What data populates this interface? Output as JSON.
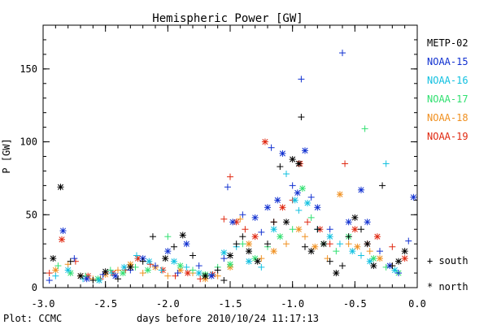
{
  "chart_data": {
    "type": "scatter",
    "title": "Hemispheric Power [GW]",
    "xlabel": "days before 2010/10/24 11:17:13",
    "ylabel": "P [GW]",
    "xlim": [
      -3.0,
      0.0
    ],
    "ylim": [
      0,
      180
    ],
    "x_ticks": [
      -3.0,
      -2.5,
      -2.0,
      -1.5,
      -1.0,
      -0.5,
      0.0
    ],
    "x_tick_labels": [
      "-3.0",
      "-2.5",
      "-2.0",
      "-1.5",
      "-1.0",
      "-0.5",
      "0.0"
    ],
    "y_ticks": [
      0,
      50,
      100,
      150
    ],
    "y_tick_labels": [
      "0",
      "50",
      "100",
      "150"
    ],
    "grid": false,
    "legend_position": "right",
    "legend": [
      {
        "name": "METP-02",
        "color": "#000000"
      },
      {
        "name": "NOAA-15",
        "color": "#1030d0"
      },
      {
        "name": "NOAA-16",
        "color": "#10c0e0"
      },
      {
        "name": "NOAA-17",
        "color": "#30e070"
      },
      {
        "name": "NOAA-18",
        "color": "#f09020"
      },
      {
        "name": "NOAA-19",
        "color": "#e02810"
      }
    ],
    "marker_key": [
      {
        "symbol": "+",
        "label": "south"
      },
      {
        "symbol": "*",
        "label": "north"
      }
    ],
    "series": [
      {
        "name": "METP-02",
        "color": "#000000",
        "points": [
          [
            -2.92,
            20,
            "*"
          ],
          [
            -2.86,
            69,
            "*"
          ],
          [
            -2.78,
            18,
            "+"
          ],
          [
            -2.7,
            8,
            "*"
          ],
          [
            -2.6,
            5,
            "+"
          ],
          [
            -2.5,
            11,
            "*"
          ],
          [
            -2.4,
            6,
            "+"
          ],
          [
            -2.3,
            14,
            "*"
          ],
          [
            -2.2,
            18,
            "+"
          ],
          [
            -2.12,
            35,
            "+"
          ],
          [
            -2.02,
            20,
            "*"
          ],
          [
            -1.95,
            28,
            "+"
          ],
          [
            -1.88,
            36,
            "*"
          ],
          [
            -1.8,
            22,
            "+"
          ],
          [
            -1.7,
            8,
            "*"
          ],
          [
            -1.6,
            12,
            "+"
          ],
          [
            -1.55,
            5,
            "+"
          ],
          [
            -1.5,
            22,
            "*"
          ],
          [
            -1.45,
            30,
            "+"
          ],
          [
            -1.4,
            35,
            "+"
          ],
          [
            -1.35,
            25,
            "*"
          ],
          [
            -1.28,
            18,
            "*"
          ],
          [
            -1.2,
            30,
            "+"
          ],
          [
            -1.15,
            45,
            "+"
          ],
          [
            -1.1,
            83,
            "+"
          ],
          [
            -1.05,
            45,
            "*"
          ],
          [
            -1.0,
            88,
            "*"
          ],
          [
            -0.95,
            85,
            "*"
          ],
          [
            -0.93,
            117,
            "+"
          ],
          [
            -0.9,
            28,
            "+"
          ],
          [
            -0.85,
            25,
            "*"
          ],
          [
            -0.8,
            40,
            "+"
          ],
          [
            -0.75,
            30,
            "*"
          ],
          [
            -0.7,
            18,
            "+"
          ],
          [
            -0.65,
            10,
            "*"
          ],
          [
            -0.6,
            15,
            "+"
          ],
          [
            -0.55,
            35,
            "+"
          ],
          [
            -0.5,
            48,
            "*"
          ],
          [
            -0.45,
            40,
            "+"
          ],
          [
            -0.4,
            30,
            "*"
          ],
          [
            -0.35,
            15,
            "*"
          ],
          [
            -0.28,
            70,
            "+"
          ],
          [
            -0.2,
            15,
            "+"
          ],
          [
            -0.15,
            18,
            "*"
          ],
          [
            -0.1,
            25,
            "*"
          ]
        ]
      },
      {
        "name": "NOAA-15",
        "color": "#1030d0",
        "points": [
          [
            -2.95,
            5,
            "+"
          ],
          [
            -2.84,
            39,
            "*"
          ],
          [
            -2.75,
            20,
            "+"
          ],
          [
            -2.65,
            6,
            "*"
          ],
          [
            -2.52,
            9,
            "+"
          ],
          [
            -2.42,
            8,
            "*"
          ],
          [
            -2.3,
            12,
            "+"
          ],
          [
            -2.2,
            20,
            "*"
          ],
          [
            -2.1,
            15,
            "+"
          ],
          [
            -2.0,
            25,
            "*"
          ],
          [
            -1.92,
            10,
            "+"
          ],
          [
            -1.85,
            30,
            "*"
          ],
          [
            -1.75,
            15,
            "+"
          ],
          [
            -1.65,
            8,
            "*"
          ],
          [
            -1.55,
            20,
            "+"
          ],
          [
            -1.52,
            69,
            "+"
          ],
          [
            -1.48,
            45,
            "*"
          ],
          [
            -1.4,
            50,
            "+"
          ],
          [
            -1.3,
            48,
            "*"
          ],
          [
            -1.25,
            38,
            "+"
          ],
          [
            -1.2,
            55,
            "*"
          ],
          [
            -1.17,
            96,
            "+"
          ],
          [
            -1.12,
            60,
            "*"
          ],
          [
            -1.08,
            92,
            "*"
          ],
          [
            -1.0,
            70,
            "+"
          ],
          [
            -0.96,
            65,
            "*"
          ],
          [
            -0.93,
            143,
            "+"
          ],
          [
            -0.9,
            94,
            "*"
          ],
          [
            -0.85,
            62,
            "+"
          ],
          [
            -0.8,
            55,
            "*"
          ],
          [
            -0.7,
            40,
            "+"
          ],
          [
            -0.6,
            161,
            "+"
          ],
          [
            -0.55,
            45,
            "*"
          ],
          [
            -0.45,
            67,
            "*"
          ],
          [
            -0.4,
            45,
            "*"
          ],
          [
            -0.3,
            25,
            "+"
          ],
          [
            -0.22,
            15,
            "*"
          ],
          [
            -0.15,
            10,
            "+"
          ],
          [
            -0.07,
            32,
            "+"
          ],
          [
            -0.03,
            62,
            "*"
          ]
        ]
      },
      {
        "name": "NOAA-16",
        "color": "#10c0e0",
        "points": [
          [
            -2.9,
            8,
            "+"
          ],
          [
            -2.8,
            12,
            "*"
          ],
          [
            -2.68,
            6,
            "+"
          ],
          [
            -2.55,
            5,
            "*"
          ],
          [
            -2.45,
            10,
            "+"
          ],
          [
            -2.35,
            14,
            "*"
          ],
          [
            -2.25,
            22,
            "+"
          ],
          [
            -2.15,
            18,
            "*"
          ],
          [
            -2.05,
            12,
            "+"
          ],
          [
            -1.95,
            18,
            "*"
          ],
          [
            -1.85,
            14,
            "+"
          ],
          [
            -1.75,
            10,
            "*"
          ],
          [
            -1.65,
            9,
            "+"
          ],
          [
            -1.55,
            24,
            "*"
          ],
          [
            -1.45,
            28,
            "+"
          ],
          [
            -1.35,
            18,
            "*"
          ],
          [
            -1.25,
            14,
            "+"
          ],
          [
            -1.15,
            40,
            "*"
          ],
          [
            -1.05,
            78,
            "+"
          ],
          [
            -0.98,
            60,
            "*"
          ],
          [
            -0.95,
            53,
            "+"
          ],
          [
            -0.88,
            58,
            "*"
          ],
          [
            -0.8,
            40,
            "+"
          ],
          [
            -0.7,
            35,
            "*"
          ],
          [
            -0.62,
            30,
            "+"
          ],
          [
            -0.52,
            25,
            "*"
          ],
          [
            -0.45,
            22,
            "+"
          ],
          [
            -0.38,
            18,
            "*"
          ],
          [
            -0.25,
            85,
            "+"
          ],
          [
            -0.18,
            12,
            "*"
          ]
        ]
      },
      {
        "name": "NOAA-17",
        "color": "#30e070",
        "points": [
          [
            -2.88,
            15,
            "+"
          ],
          [
            -2.78,
            10,
            "*"
          ],
          [
            -2.66,
            8,
            "+"
          ],
          [
            -2.56,
            6,
            "*"
          ],
          [
            -2.46,
            12,
            "+"
          ],
          [
            -2.36,
            10,
            "*"
          ],
          [
            -2.26,
            14,
            "+"
          ],
          [
            -2.16,
            12,
            "*"
          ],
          [
            -2.0,
            35,
            "+"
          ],
          [
            -1.9,
            15,
            "*"
          ],
          [
            -1.8,
            12,
            "+"
          ],
          [
            -1.7,
            9,
            "*"
          ],
          [
            -1.6,
            14,
            "+"
          ],
          [
            -1.5,
            16,
            "*"
          ],
          [
            -1.4,
            30,
            "+"
          ],
          [
            -1.3,
            20,
            "*"
          ],
          [
            -1.2,
            28,
            "+"
          ],
          [
            -1.1,
            35,
            "*"
          ],
          [
            -1.0,
            40,
            "+"
          ],
          [
            -0.92,
            68,
            "*"
          ],
          [
            -0.85,
            48,
            "+"
          ],
          [
            -0.75,
            30,
            "*"
          ],
          [
            -0.65,
            25,
            "+"
          ],
          [
            -0.55,
            35,
            "*"
          ],
          [
            -0.42,
            109,
            "+"
          ],
          [
            -0.35,
            20,
            "*"
          ],
          [
            -0.25,
            14,
            "+"
          ],
          [
            -0.15,
            10,
            "*"
          ]
        ]
      },
      {
        "name": "NOAA-18",
        "color": "#f09020",
        "points": [
          [
            -2.9,
            12,
            "*"
          ],
          [
            -2.8,
            16,
            "+"
          ],
          [
            -2.7,
            8,
            "*"
          ],
          [
            -2.6,
            6,
            "+"
          ],
          [
            -2.5,
            9,
            "*"
          ],
          [
            -2.4,
            12,
            "+"
          ],
          [
            -2.3,
            16,
            "*"
          ],
          [
            -2.2,
            10,
            "+"
          ],
          [
            -2.1,
            14,
            "*"
          ],
          [
            -2.0,
            8,
            "+"
          ],
          [
            -1.9,
            12,
            "*"
          ],
          [
            -1.8,
            10,
            "+"
          ],
          [
            -1.7,
            6,
            "*"
          ],
          [
            -1.6,
            8,
            "+"
          ],
          [
            -1.5,
            14,
            "*"
          ],
          [
            -1.42,
            47,
            "+"
          ],
          [
            -1.35,
            30,
            "*"
          ],
          [
            -1.25,
            20,
            "+"
          ],
          [
            -1.15,
            25,
            "*"
          ],
          [
            -1.05,
            30,
            "+"
          ],
          [
            -0.95,
            40,
            "*"
          ],
          [
            -0.9,
            35,
            "+"
          ],
          [
            -0.82,
            28,
            "*"
          ],
          [
            -0.72,
            20,
            "+"
          ],
          [
            -0.62,
            64,
            "*"
          ],
          [
            -0.55,
            30,
            "+"
          ],
          [
            -0.48,
            28,
            "*"
          ],
          [
            -0.38,
            25,
            "+"
          ],
          [
            -0.3,
            20,
            "*"
          ],
          [
            -0.2,
            15,
            "+"
          ]
        ]
      },
      {
        "name": "NOAA-19",
        "color": "#e02810",
        "points": [
          [
            -2.95,
            10,
            "+"
          ],
          [
            -2.85,
            33,
            "*"
          ],
          [
            -2.74,
            18,
            "+"
          ],
          [
            -2.64,
            8,
            "*"
          ],
          [
            -2.54,
            6,
            "+"
          ],
          [
            -2.44,
            10,
            "*"
          ],
          [
            -2.34,
            12,
            "+"
          ],
          [
            -2.24,
            20,
            "*"
          ],
          [
            -2.14,
            16,
            "+"
          ],
          [
            -2.04,
            12,
            "*"
          ],
          [
            -1.94,
            8,
            "+"
          ],
          [
            -1.84,
            10,
            "*"
          ],
          [
            -1.74,
            6,
            "+"
          ],
          [
            -1.64,
            9,
            "*"
          ],
          [
            -1.55,
            47,
            "+"
          ],
          [
            -1.5,
            76,
            "+"
          ],
          [
            -1.45,
            45,
            "*"
          ],
          [
            -1.38,
            40,
            "+"
          ],
          [
            -1.3,
            35,
            "*"
          ],
          [
            -1.22,
            100,
            "*"
          ],
          [
            -1.15,
            45,
            "+"
          ],
          [
            -1.08,
            55,
            "*"
          ],
          [
            -1.0,
            60,
            "+"
          ],
          [
            -0.94,
            85,
            "*"
          ],
          [
            -0.88,
            45,
            "+"
          ],
          [
            -0.78,
            40,
            "*"
          ],
          [
            -0.7,
            30,
            "+"
          ],
          [
            -0.58,
            85,
            "+"
          ],
          [
            -0.5,
            40,
            "*"
          ],
          [
            -0.4,
            30,
            "+"
          ],
          [
            -0.32,
            35,
            "*"
          ],
          [
            -0.2,
            28,
            "+"
          ],
          [
            -0.1,
            20,
            "*"
          ]
        ]
      }
    ]
  },
  "footer": {
    "credit": "Plot: CCMC"
  }
}
